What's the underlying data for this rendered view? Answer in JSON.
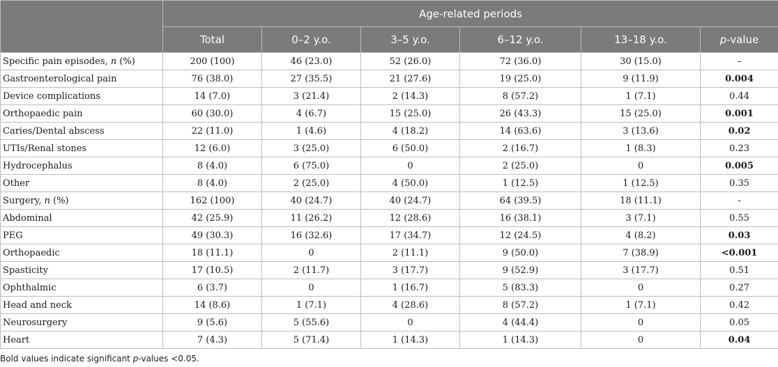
{
  "header": {
    "group": "Age-related periods",
    "columns": {
      "total": "Total",
      "age1": "0–2 y.o.",
      "age2": "3–5 y.o.",
      "age3": "6–12 y.o.",
      "age4": "13–18 y.o.",
      "pvalue_italic": "p",
      "pvalue_rest": "-value"
    }
  },
  "rows": [
    {
      "label": "Specific pain episodes, ",
      "label_italic": "n",
      "label_suffix": " (%)",
      "total": "200 (100)",
      "a1": "46 (23.0)",
      "a2": "52 (26.0)",
      "a3": "72 (36.0)",
      "a4": "30 (15.0)",
      "p": "–",
      "bold": false
    },
    {
      "label": "Gastroenterological pain",
      "total": "76 (38.0)",
      "a1": "27 (35.5)",
      "a2": "21 (27.6)",
      "a3": "19 (25.0)",
      "a4": "9 (11.9)",
      "p": "0.004",
      "bold": true
    },
    {
      "label": "Device complications",
      "total": "14 (7.0)",
      "a1": "3 (21.4)",
      "a2": "2 (14.3)",
      "a3": "8 (57.2)",
      "a4": "1 (7.1)",
      "p": "0.44",
      "bold": false
    },
    {
      "label": "Orthopaedic pain",
      "total": "60 (30.0)",
      "a1": "4 (6.7)",
      "a2": "15 (25.0)",
      "a3": "26 (43.3)",
      "a4": "15 (25.0)",
      "p": "0.001",
      "bold": true
    },
    {
      "label": "Caries/Dental abscess",
      "total": "22 (11.0)",
      "a1": "1 (4.6)",
      "a2": "4 (18.2)",
      "a3": "14 (63.6)",
      "a4": "3 (13.6)",
      "p": "0.02",
      "bold": true
    },
    {
      "label": "UTIs/Renal stones",
      "total": "12 (6.0)",
      "a1": "3 (25.0)",
      "a2": "6 (50.0)",
      "a3": "2 (16.7)",
      "a4": "1 (8.3)",
      "p": "0.23",
      "bold": false
    },
    {
      "label": "Hydrocephalus",
      "total": "8 (4.0)",
      "a1": "6 (75.0)",
      "a2": "0",
      "a3": "2 (25.0)",
      "a4": "0",
      "p": "0.005",
      "bold": true
    },
    {
      "label": "Other",
      "total": "8 (4.0)",
      "a1": "2 (25.0)",
      "a2": "4 (50.0)",
      "a3": "1 (12.5)",
      "a4": "1 (12.5)",
      "p": "0.35",
      "bold": false
    },
    {
      "label": "Surgery, ",
      "label_italic": "n",
      "label_suffix": " (%)",
      "total": "162 (100)",
      "a1": "40 (24.7)",
      "a2": "40 (24.7)",
      "a3": "64 (39.5)",
      "a4": "18 (11.1)",
      "p": "-",
      "bold": false
    },
    {
      "label": "Abdominal",
      "total": "42 (25.9)",
      "a1": "11 (26.2)",
      "a2": "12 (28.6)",
      "a3": "16 (38.1)",
      "a4": "3 (7.1)",
      "p": "0.55",
      "bold": false
    },
    {
      "label": "PEG",
      "total": "49 (30.3)",
      "a1": "16 (32.6)",
      "a2": "17 (34.7)",
      "a3": "12 (24.5)",
      "a4": "4 (8.2)",
      "p": "0.03",
      "bold": true
    },
    {
      "label": "Orthopaedic",
      "total": "18 (11.1)",
      "a1": "0",
      "a2": "2 (11.1)",
      "a3": "9 (50.0)",
      "a4": "7 (38.9)",
      "p": "<0.001",
      "bold": true
    },
    {
      "label": "Spasticity",
      "total": "17 (10.5)",
      "a1": "2 (11.7)",
      "a2": "3 (17.7)",
      "a3": "9 (52.9)",
      "a4": "3 (17.7)",
      "p": "0.51",
      "bold": false
    },
    {
      "label": "Ophthalmic",
      "total": "6 (3.7)",
      "a1": "0",
      "a2": "1 (16.7)",
      "a3": "5 (83.3)",
      "a4": "0",
      "p": "0.27",
      "bold": false
    },
    {
      "label": "Head and neck",
      "total": "14 (8.6)",
      "a1": "1 (7.1)",
      "a2": "4 (28.6)",
      "a3": "8 (57.2)",
      "a4": "1 (7.1)",
      "p": "0.42",
      "bold": false
    },
    {
      "label": "Neurosurgery",
      "total": "9 (5.6)",
      "a1": "5 (55.6)",
      "a2": "0",
      "a3": "4 (44.4)",
      "a4": "0",
      "p": "0.05",
      "bold": false
    },
    {
      "label": "Heart",
      "total": "7 (4.3)",
      "a1": "5 (71.4)",
      "a2": "1 (14.3)",
      "a3": "1 (14.3)",
      "a4": "0",
      "p": "0.04",
      "bold": true
    }
  ],
  "footnote": {
    "prefix": "Bold values indicate significant ",
    "italic": "p",
    "suffix": "-values <0.05."
  }
}
